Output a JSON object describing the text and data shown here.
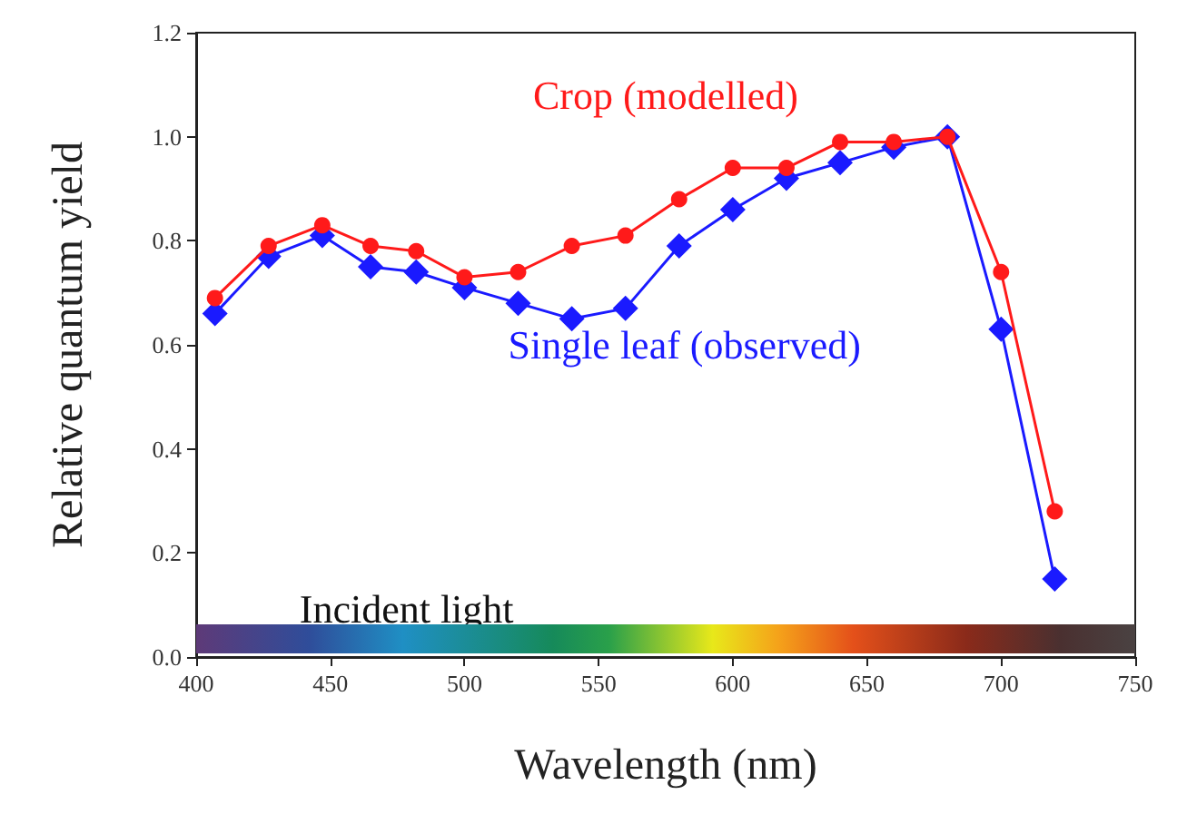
{
  "chart_data": {
    "type": "line",
    "xlabel": "Wavelength (nm)",
    "ylabel": "Relative quantum yield",
    "x": [
      407,
      427,
      447,
      465,
      482,
      500,
      520,
      540,
      560,
      580,
      600,
      620,
      640,
      660,
      680,
      700,
      720
    ],
    "series": [
      {
        "name": "Crop (modelled)",
        "color": "#ff1a1a",
        "marker": "circle",
        "values": [
          0.69,
          0.79,
          0.83,
          0.79,
          0.78,
          0.73,
          0.74,
          0.79,
          0.81,
          0.88,
          0.94,
          0.94,
          0.99,
          0.99,
          1.0,
          0.74,
          0.28
        ]
      },
      {
        "name": "Single leaf (observed)",
        "color": "#1a1aff",
        "marker": "diamond",
        "values": [
          0.66,
          0.77,
          0.81,
          0.75,
          0.74,
          0.71,
          0.68,
          0.65,
          0.67,
          0.79,
          0.86,
          0.92,
          0.95,
          0.98,
          1.0,
          0.63,
          0.15
        ]
      }
    ],
    "xlim": [
      400,
      750
    ],
    "xticks": [
      400,
      450,
      500,
      550,
      600,
      650,
      700,
      750
    ],
    "ylim": [
      0,
      1.2
    ],
    "yticks": [
      {
        "value": 0,
        "label": "0.0"
      },
      {
        "value": 0.2,
        "label": "0.2"
      },
      {
        "value": 0.4,
        "label": "0.4"
      },
      {
        "value": 0.6,
        "label": "0.6"
      },
      {
        "value": 0.8,
        "label": "0.8"
      },
      {
        "value": 1.0,
        "label": "1.0"
      },
      {
        "value": 1.2,
        "label": "1.2"
      }
    ],
    "annotations": [
      "Incident light"
    ],
    "grid": false,
    "legend": false,
    "line_style": "solid"
  }
}
